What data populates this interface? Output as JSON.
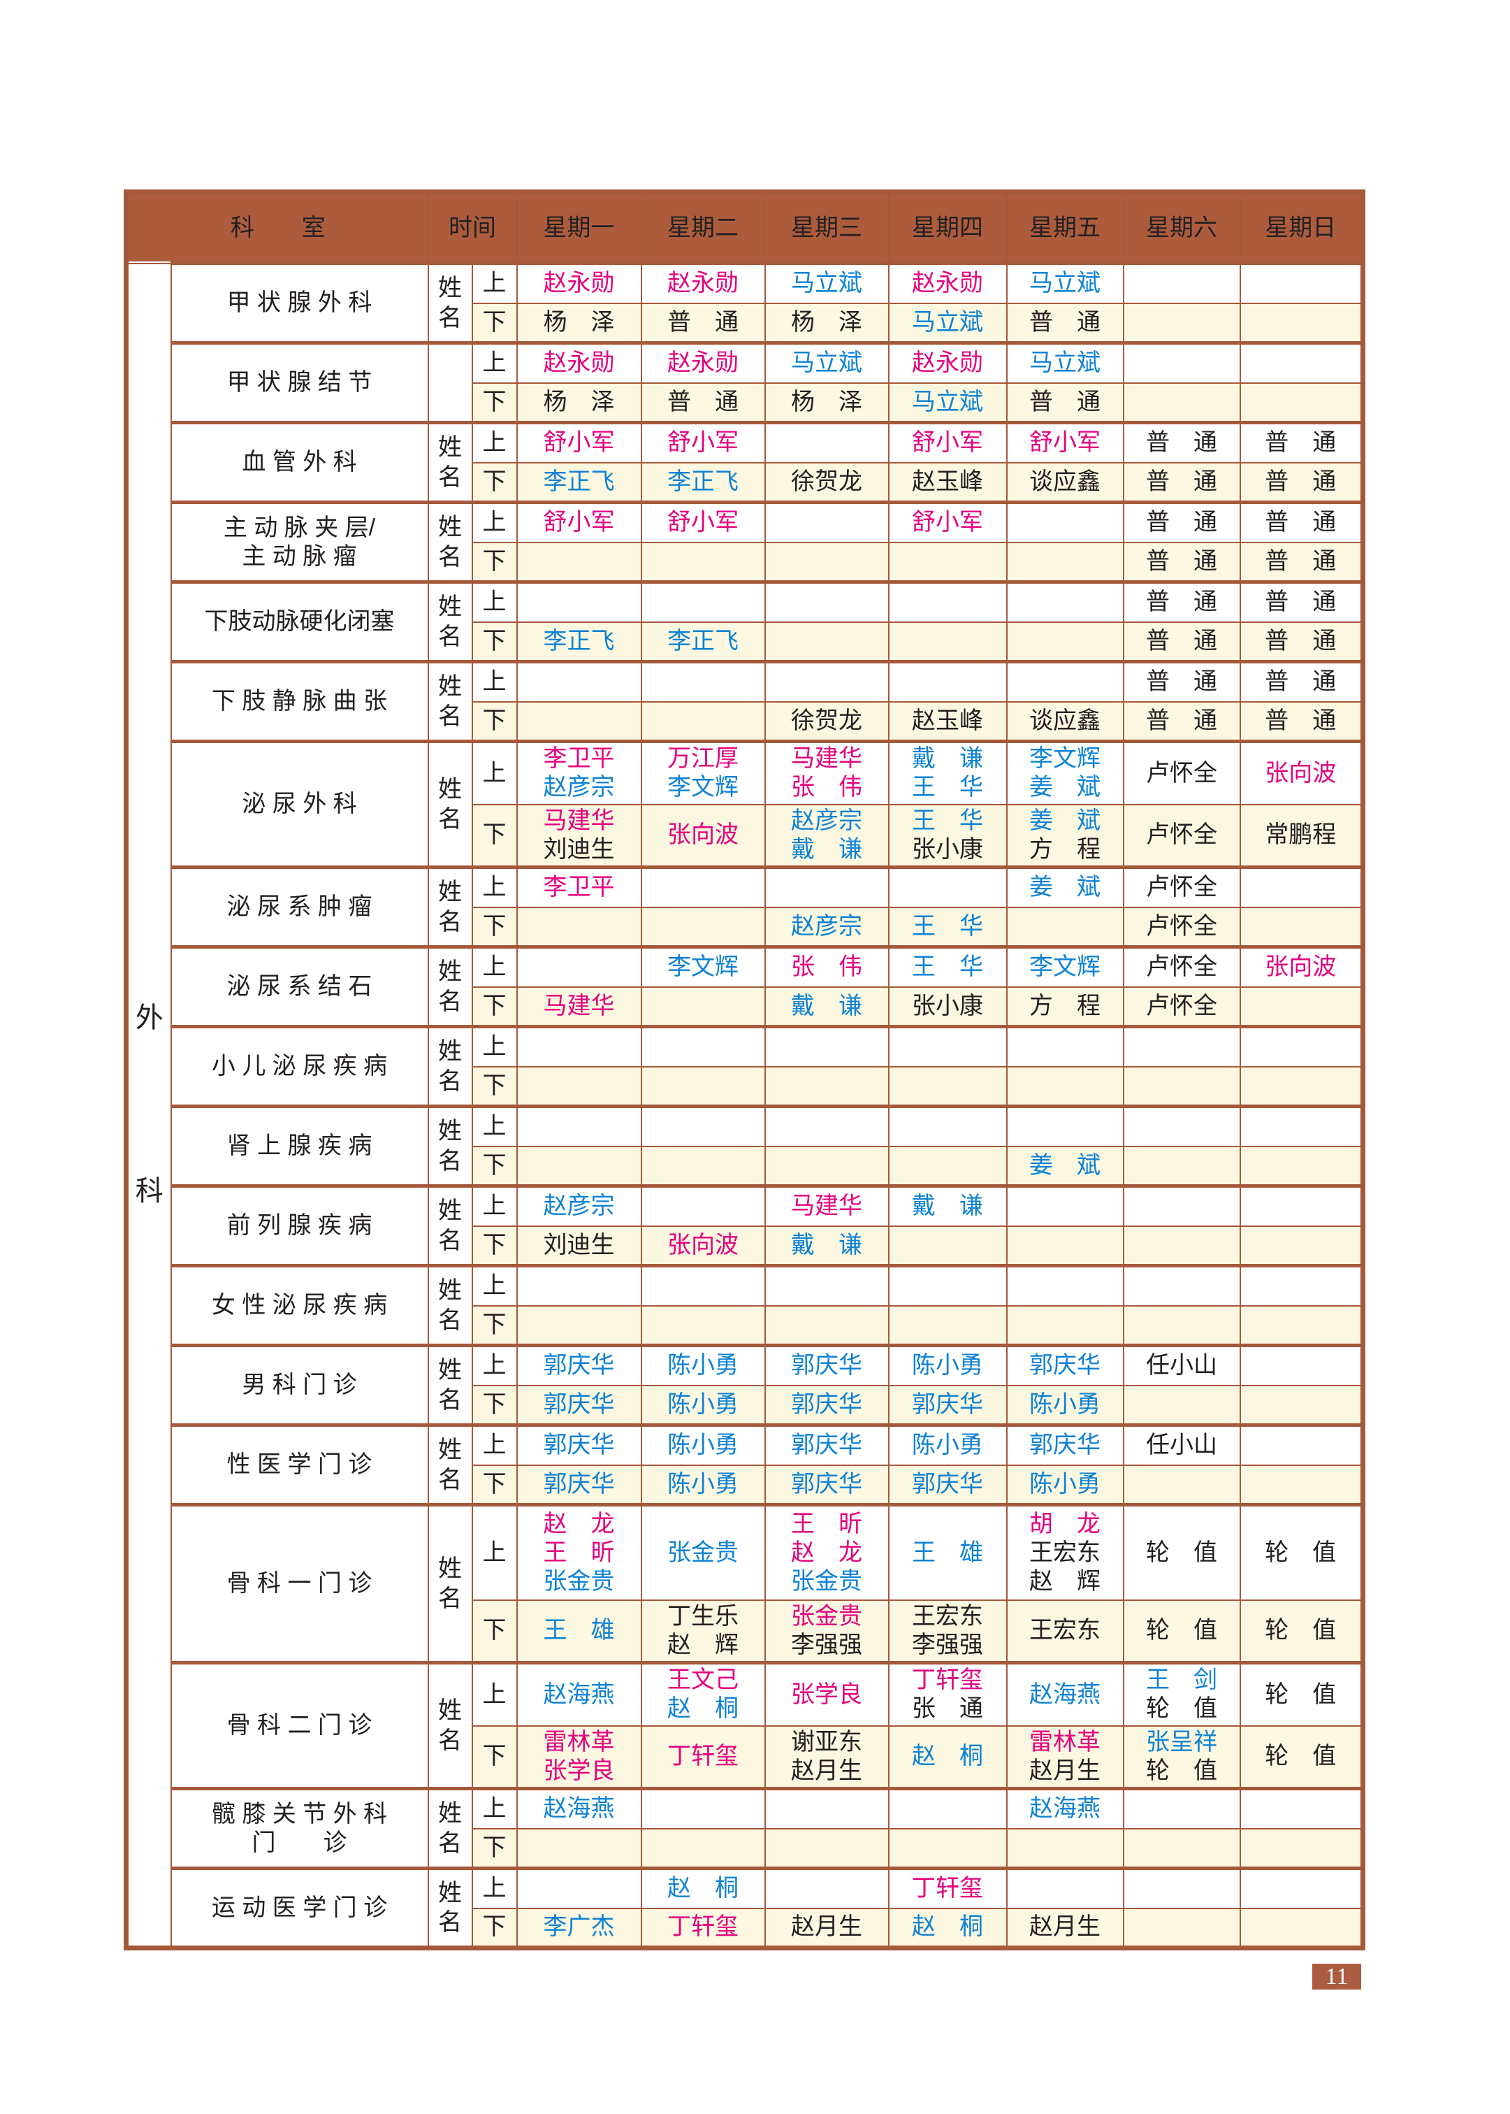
{
  "page": {
    "number": "11"
  },
  "colors": {
    "header_bg": "#ac5c3c",
    "border_brown": "#a5593b",
    "cream_row": "#fbf7e0",
    "magenta_name": "#e4007f",
    "blue_name": "#0e82d4",
    "black_name": "#231f20",
    "badge_bg": "#ac5c41"
  },
  "header": {
    "dept": "科　　室",
    "time": "时间",
    "days": [
      "星期一",
      "星期二",
      "星期三",
      "星期四",
      "星期五",
      "星期六",
      "星期日"
    ]
  },
  "legend": {
    "group_label": [
      "外",
      "科"
    ],
    "name_label": [
      "姓",
      "名"
    ],
    "session_am": "上",
    "session_pm": "下"
  },
  "rows": [
    {
      "dept": [
        "甲 状 腺 外 科"
      ],
      "show_name_label": true,
      "am": [
        [
          {
            "t": "赵永勋",
            "c": "m"
          }
        ],
        [
          {
            "t": "赵永勋",
            "c": "m"
          }
        ],
        [
          {
            "t": "马立斌",
            "c": "b"
          }
        ],
        [
          {
            "t": "赵永勋",
            "c": "m"
          }
        ],
        [
          {
            "t": "马立斌",
            "c": "b"
          }
        ],
        [],
        []
      ],
      "pm": [
        [
          {
            "t": "杨　泽",
            "c": "k"
          }
        ],
        [
          {
            "t": "普　通",
            "c": "k"
          }
        ],
        [
          {
            "t": "杨　泽",
            "c": "k"
          }
        ],
        [
          {
            "t": "马立斌",
            "c": "b"
          }
        ],
        [
          {
            "t": "普　通",
            "c": "k"
          }
        ],
        [],
        []
      ]
    },
    {
      "dept": [
        "甲 状 腺 结 节"
      ],
      "show_name_label": false,
      "am": [
        [
          {
            "t": "赵永勋",
            "c": "m"
          }
        ],
        [
          {
            "t": "赵永勋",
            "c": "m"
          }
        ],
        [
          {
            "t": "马立斌",
            "c": "b"
          }
        ],
        [
          {
            "t": "赵永勋",
            "c": "m"
          }
        ],
        [
          {
            "t": "马立斌",
            "c": "b"
          }
        ],
        [],
        []
      ],
      "pm": [
        [
          {
            "t": "杨　泽",
            "c": "k"
          }
        ],
        [
          {
            "t": "普　通",
            "c": "k"
          }
        ],
        [
          {
            "t": "杨　泽",
            "c": "k"
          }
        ],
        [
          {
            "t": "马立斌",
            "c": "b"
          }
        ],
        [
          {
            "t": "普　通",
            "c": "k"
          }
        ],
        [],
        []
      ]
    },
    {
      "dept": [
        "血  管  外  科"
      ],
      "show_name_label": true,
      "am": [
        [
          {
            "t": "舒小军",
            "c": "m"
          }
        ],
        [
          {
            "t": "舒小军",
            "c": "m"
          }
        ],
        [],
        [
          {
            "t": "舒小军",
            "c": "m"
          }
        ],
        [
          {
            "t": "舒小军",
            "c": "m"
          }
        ],
        [
          {
            "t": "普　通",
            "c": "k"
          }
        ],
        [
          {
            "t": "普　通",
            "c": "k"
          }
        ]
      ],
      "pm": [
        [
          {
            "t": "李正飞",
            "c": "b"
          }
        ],
        [
          {
            "t": "李正飞",
            "c": "b"
          }
        ],
        [
          {
            "t": "徐贺龙",
            "c": "k"
          }
        ],
        [
          {
            "t": "赵玉峰",
            "c": "k"
          }
        ],
        [
          {
            "t": "谈应鑫",
            "c": "k"
          }
        ],
        [
          {
            "t": "普　通",
            "c": "k"
          }
        ],
        [
          {
            "t": "普　通",
            "c": "k"
          }
        ]
      ]
    },
    {
      "dept": [
        "主 动 脉 夹 层/",
        "主 动 脉 瘤"
      ],
      "show_name_label": true,
      "am": [
        [
          {
            "t": "舒小军",
            "c": "m"
          }
        ],
        [
          {
            "t": "舒小军",
            "c": "m"
          }
        ],
        [],
        [
          {
            "t": "舒小军",
            "c": "m"
          }
        ],
        [],
        [
          {
            "t": "普　通",
            "c": "k"
          }
        ],
        [
          {
            "t": "普　通",
            "c": "k"
          }
        ]
      ],
      "pm": [
        [],
        [],
        [],
        [],
        [],
        [
          {
            "t": "普　通",
            "c": "k"
          }
        ],
        [
          {
            "t": "普　通",
            "c": "k"
          }
        ]
      ]
    },
    {
      "dept": [
        "下肢动脉硬化闭塞"
      ],
      "show_name_label": true,
      "am": [
        [],
        [],
        [],
        [],
        [],
        [
          {
            "t": "普　通",
            "c": "k"
          }
        ],
        [
          {
            "t": "普　通",
            "c": "k"
          }
        ]
      ],
      "pm": [
        [
          {
            "t": "李正飞",
            "c": "b"
          }
        ],
        [
          {
            "t": "李正飞",
            "c": "b"
          }
        ],
        [],
        [],
        [],
        [
          {
            "t": "普　通",
            "c": "k"
          }
        ],
        [
          {
            "t": "普　通",
            "c": "k"
          }
        ]
      ]
    },
    {
      "dept": [
        "下 肢 静 脉 曲 张"
      ],
      "show_name_label": true,
      "am": [
        [],
        [],
        [],
        [],
        [],
        [
          {
            "t": "普　通",
            "c": "k"
          }
        ],
        [
          {
            "t": "普　通",
            "c": "k"
          }
        ]
      ],
      "pm": [
        [],
        [],
        [
          {
            "t": "徐贺龙",
            "c": "k"
          }
        ],
        [
          {
            "t": "赵玉峰",
            "c": "k"
          }
        ],
        [
          {
            "t": "谈应鑫",
            "c": "k"
          }
        ],
        [
          {
            "t": "普　通",
            "c": "k"
          }
        ],
        [
          {
            "t": "普　通",
            "c": "k"
          }
        ]
      ]
    },
    {
      "dept": [
        "泌  尿  外  科"
      ],
      "show_name_label": true,
      "am": [
        [
          {
            "t": "李卫平",
            "c": "m"
          },
          {
            "t": "赵彦宗",
            "c": "b"
          }
        ],
        [
          {
            "t": "万江厚",
            "c": "m"
          },
          {
            "t": "李文辉",
            "c": "b"
          }
        ],
        [
          {
            "t": "马建华",
            "c": "m"
          },
          {
            "t": "张　伟",
            "c": "m"
          }
        ],
        [
          {
            "t": "戴　谦",
            "c": "b"
          },
          {
            "t": "王　华",
            "c": "b"
          }
        ],
        [
          {
            "t": "李文辉",
            "c": "b"
          },
          {
            "t": "姜　斌",
            "c": "b"
          }
        ],
        [
          {
            "t": "卢怀全",
            "c": "k"
          }
        ],
        [
          {
            "t": "张向波",
            "c": "m"
          }
        ]
      ],
      "pm": [
        [
          {
            "t": "马建华",
            "c": "m"
          },
          {
            "t": "刘迪生",
            "c": "k"
          }
        ],
        [
          {
            "t": "张向波",
            "c": "m"
          }
        ],
        [
          {
            "t": "赵彦宗",
            "c": "b"
          },
          {
            "t": "戴　谦",
            "c": "b"
          }
        ],
        [
          {
            "t": "王　华",
            "c": "b"
          },
          {
            "t": "张小康",
            "c": "k"
          }
        ],
        [
          {
            "t": "姜　斌",
            "c": "b"
          },
          {
            "t": "方　程",
            "c": "k"
          }
        ],
        [
          {
            "t": "卢怀全",
            "c": "k"
          }
        ],
        [
          {
            "t": "常鹏程",
            "c": "k"
          }
        ]
      ]
    },
    {
      "dept": [
        "泌 尿 系 肿 瘤"
      ],
      "show_name_label": true,
      "am": [
        [
          {
            "t": "李卫平",
            "c": "m"
          }
        ],
        [],
        [],
        [],
        [
          {
            "t": "姜　斌",
            "c": "b"
          }
        ],
        [
          {
            "t": "卢怀全",
            "c": "k"
          }
        ],
        []
      ],
      "pm": [
        [],
        [],
        [
          {
            "t": "赵彦宗",
            "c": "b"
          }
        ],
        [
          {
            "t": "王　华",
            "c": "b"
          }
        ],
        [],
        [
          {
            "t": "卢怀全",
            "c": "k"
          }
        ],
        []
      ]
    },
    {
      "dept": [
        "泌 尿 系 结 石"
      ],
      "show_name_label": true,
      "am": [
        [],
        [
          {
            "t": "李文辉",
            "c": "b"
          }
        ],
        [
          {
            "t": "张　伟",
            "c": "m"
          }
        ],
        [
          {
            "t": "王　华",
            "c": "b"
          }
        ],
        [
          {
            "t": "李文辉",
            "c": "b"
          }
        ],
        [
          {
            "t": "卢怀全",
            "c": "k"
          }
        ],
        [
          {
            "t": "张向波",
            "c": "m"
          }
        ]
      ],
      "pm": [
        [
          {
            "t": "马建华",
            "c": "m"
          }
        ],
        [],
        [
          {
            "t": "戴　谦",
            "c": "b"
          }
        ],
        [
          {
            "t": "张小康",
            "c": "k"
          }
        ],
        [
          {
            "t": "方　程",
            "c": "k"
          }
        ],
        [
          {
            "t": "卢怀全",
            "c": "k"
          }
        ],
        []
      ]
    },
    {
      "dept": [
        "小 儿 泌 尿 疾 病"
      ],
      "show_name_label": true,
      "am": [
        [],
        [],
        [],
        [],
        [],
        [],
        []
      ],
      "pm": [
        [],
        [],
        [],
        [],
        [],
        [],
        []
      ]
    },
    {
      "dept": [
        "肾 上 腺 疾 病"
      ],
      "show_name_label": true,
      "am": [
        [],
        [],
        [],
        [],
        [],
        [],
        []
      ],
      "pm": [
        [],
        [],
        [],
        [],
        [
          {
            "t": "姜　斌",
            "c": "b"
          }
        ],
        [],
        []
      ]
    },
    {
      "dept": [
        "前 列 腺 疾 病"
      ],
      "show_name_label": true,
      "am": [
        [
          {
            "t": "赵彦宗",
            "c": "b"
          }
        ],
        [],
        [
          {
            "t": "马建华",
            "c": "m"
          }
        ],
        [
          {
            "t": "戴　谦",
            "c": "b"
          }
        ],
        [],
        [],
        []
      ],
      "pm": [
        [
          {
            "t": "刘迪生",
            "c": "k"
          }
        ],
        [
          {
            "t": "张向波",
            "c": "m"
          }
        ],
        [
          {
            "t": "戴　谦",
            "c": "b"
          }
        ],
        [],
        [],
        [],
        []
      ]
    },
    {
      "dept": [
        "女 性 泌 尿 疾 病"
      ],
      "show_name_label": true,
      "am": [
        [],
        [],
        [],
        [],
        [],
        [],
        []
      ],
      "pm": [
        [],
        [],
        [],
        [],
        [],
        [],
        []
      ]
    },
    {
      "dept": [
        "男  科  门  诊"
      ],
      "show_name_label": true,
      "am": [
        [
          {
            "t": "郭庆华",
            "c": "b"
          }
        ],
        [
          {
            "t": "陈小勇",
            "c": "b"
          }
        ],
        [
          {
            "t": "郭庆华",
            "c": "b"
          }
        ],
        [
          {
            "t": "陈小勇",
            "c": "b"
          }
        ],
        [
          {
            "t": "郭庆华",
            "c": "b"
          }
        ],
        [
          {
            "t": "任小山",
            "c": "k"
          }
        ],
        []
      ],
      "pm": [
        [
          {
            "t": "郭庆华",
            "c": "b"
          }
        ],
        [
          {
            "t": "陈小勇",
            "c": "b"
          }
        ],
        [
          {
            "t": "郭庆华",
            "c": "b"
          }
        ],
        [
          {
            "t": "郭庆华",
            "c": "b"
          }
        ],
        [
          {
            "t": "陈小勇",
            "c": "b"
          }
        ],
        [],
        []
      ]
    },
    {
      "dept": [
        "性 医 学 门 诊"
      ],
      "show_name_label": true,
      "am": [
        [
          {
            "t": "郭庆华",
            "c": "b"
          }
        ],
        [
          {
            "t": "陈小勇",
            "c": "b"
          }
        ],
        [
          {
            "t": "郭庆华",
            "c": "b"
          }
        ],
        [
          {
            "t": "陈小勇",
            "c": "b"
          }
        ],
        [
          {
            "t": "郭庆华",
            "c": "b"
          }
        ],
        [
          {
            "t": "任小山",
            "c": "k"
          }
        ],
        []
      ],
      "pm": [
        [
          {
            "t": "郭庆华",
            "c": "b"
          }
        ],
        [
          {
            "t": "陈小勇",
            "c": "b"
          }
        ],
        [
          {
            "t": "郭庆华",
            "c": "b"
          }
        ],
        [
          {
            "t": "郭庆华",
            "c": "b"
          }
        ],
        [
          {
            "t": "陈小勇",
            "c": "b"
          }
        ],
        [],
        []
      ]
    },
    {
      "dept": [
        "骨 科 一 门 诊"
      ],
      "show_name_label": true,
      "am": [
        [
          {
            "t": "赵　龙",
            "c": "m"
          },
          {
            "t": "王　昕",
            "c": "m"
          },
          {
            "t": "张金贵",
            "c": "b"
          }
        ],
        [
          {
            "t": "张金贵",
            "c": "b"
          }
        ],
        [
          {
            "t": "王　昕",
            "c": "m"
          },
          {
            "t": "赵　龙",
            "c": "m"
          },
          {
            "t": "张金贵",
            "c": "b"
          }
        ],
        [
          {
            "t": "王　雄",
            "c": "b"
          }
        ],
        [
          {
            "t": "胡　龙",
            "c": "m"
          },
          {
            "t": "王宏东",
            "c": "k"
          },
          {
            "t": "赵　辉",
            "c": "k"
          }
        ],
        [
          {
            "t": "轮　值",
            "c": "k"
          }
        ],
        [
          {
            "t": "轮　值",
            "c": "k"
          }
        ]
      ],
      "pm": [
        [
          {
            "t": "王　雄",
            "c": "b"
          }
        ],
        [
          {
            "t": "丁生乐",
            "c": "k"
          },
          {
            "t": "赵　辉",
            "c": "k"
          }
        ],
        [
          {
            "t": "张金贵",
            "c": "m"
          },
          {
            "t": "李强强",
            "c": "k"
          }
        ],
        [
          {
            "t": "王宏东",
            "c": "k"
          },
          {
            "t": "李强强",
            "c": "k"
          }
        ],
        [
          {
            "t": "王宏东",
            "c": "k"
          }
        ],
        [
          {
            "t": "轮　值",
            "c": "k"
          }
        ],
        [
          {
            "t": "轮　值",
            "c": "k"
          }
        ]
      ]
    },
    {
      "dept": [
        "骨 科 二 门 诊"
      ],
      "show_name_label": true,
      "am": [
        [
          {
            "t": "赵海燕",
            "c": "b"
          }
        ],
        [
          {
            "t": "王文己",
            "c": "m"
          },
          {
            "t": "赵　桐",
            "c": "b"
          }
        ],
        [
          {
            "t": "张学良",
            "c": "m"
          }
        ],
        [
          {
            "t": "丁轩玺",
            "c": "m"
          },
          {
            "t": "张　通",
            "c": "k"
          }
        ],
        [
          {
            "t": "赵海燕",
            "c": "b"
          }
        ],
        [
          {
            "t": "王　剑",
            "c": "b"
          },
          {
            "t": "轮　值",
            "c": "k"
          }
        ],
        [
          {
            "t": "轮　值",
            "c": "k"
          }
        ]
      ],
      "pm": [
        [
          {
            "t": "雷林革",
            "c": "m"
          },
          {
            "t": "张学良",
            "c": "m"
          }
        ],
        [
          {
            "t": "丁轩玺",
            "c": "m"
          }
        ],
        [
          {
            "t": "谢亚东",
            "c": "k"
          },
          {
            "t": "赵月生",
            "c": "k"
          }
        ],
        [
          {
            "t": "赵　桐",
            "c": "b"
          }
        ],
        [
          {
            "t": "雷林革",
            "c": "m"
          },
          {
            "t": "赵月生",
            "c": "k"
          }
        ],
        [
          {
            "t": "张呈祥",
            "c": "b"
          },
          {
            "t": "轮　值",
            "c": "k"
          }
        ],
        [
          {
            "t": "轮　值",
            "c": "k"
          }
        ]
      ]
    },
    {
      "dept": [
        "髋 膝 关 节 外 科",
        "门　　诊"
      ],
      "show_name_label": true,
      "am": [
        [
          {
            "t": "赵海燕",
            "c": "b"
          }
        ],
        [],
        [],
        [],
        [
          {
            "t": "赵海燕",
            "c": "b"
          }
        ],
        [],
        []
      ],
      "pm": [
        [],
        [],
        [],
        [],
        [],
        [],
        []
      ]
    },
    {
      "dept": [
        "运 动 医 学 门 诊"
      ],
      "show_name_label": true,
      "am": [
        [],
        [
          {
            "t": "赵　桐",
            "c": "b"
          }
        ],
        [],
        [
          {
            "t": "丁轩玺",
            "c": "m"
          }
        ],
        [],
        [],
        []
      ],
      "pm": [
        [
          {
            "t": "李广杰",
            "c": "b"
          }
        ],
        [
          {
            "t": "丁轩玺",
            "c": "m"
          }
        ],
        [
          {
            "t": "赵月生",
            "c": "k"
          }
        ],
        [
          {
            "t": "赵　桐",
            "c": "b"
          }
        ],
        [
          {
            "t": "赵月生",
            "c": "k"
          }
        ],
        [],
        []
      ]
    }
  ]
}
